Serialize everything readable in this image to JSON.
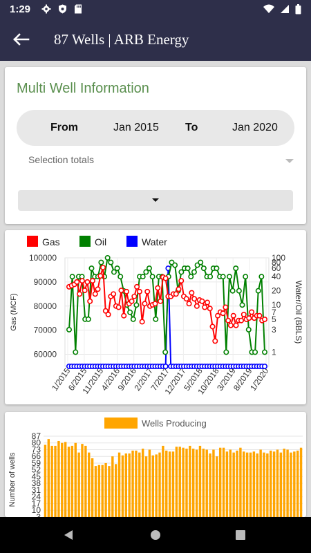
{
  "status_bar": {
    "time": "1:29"
  },
  "app_bar": {
    "title": "87 Wells | ARB Energy"
  },
  "multi_well": {
    "title": "Multi Well Information",
    "from_label": "From",
    "from_value": "Jan 2015",
    "to_label": "To",
    "to_value": "Jan 2020",
    "selection_placeholder": "Selection totals"
  },
  "colors": {
    "gas": "#ff0000",
    "oil": "#008000",
    "water": "#0000ff",
    "wells": "#ffa500",
    "accent": "#5a8f4e",
    "bar": "#2e2f4a"
  },
  "chart_data": [
    {
      "type": "line",
      "legend": [
        "Gas",
        "Oil",
        "Water"
      ],
      "legend_position": "top-left",
      "ylabel": "Gas (MCF)",
      "y2label": "Water/Oil (BBLS)",
      "ylim": [
        55000,
        100000
      ],
      "y_ticks": [
        60000,
        70000,
        80000,
        90000,
        100000
      ],
      "y2_scale": "log",
      "y2lim": [
        0.5,
        100
      ],
      "y2_ticks": [
        1,
        3,
        5,
        7,
        10,
        20,
        40,
        60,
        80,
        100
      ],
      "x_ticks": [
        "1/2015",
        "6/2015",
        "11/2015",
        "4/2016",
        "9/2016",
        "2/2017",
        "7/2017",
        "12/2017",
        "5/2018",
        "10/2018",
        "3/2019",
        "8/2019",
        "1/2020"
      ],
      "grid": true,
      "series": [
        {
          "name": "Gas",
          "axis": "left",
          "values": [
            88000,
            88500,
            89000,
            90000,
            85000,
            90500,
            86500,
            90000,
            82000,
            90500,
            85000,
            87000,
            92500,
            96000,
            78000,
            76500,
            84000,
            85000,
            80000,
            79500,
            86500,
            76000,
            86000,
            81000,
            82000,
            84000,
            88000,
            86000,
            73500,
            81000,
            86000,
            80000,
            80500,
            81000,
            87500,
            82000,
            92000,
            91500,
            84000,
            84000,
            85000,
            85000,
            87000,
            90500,
            84000,
            83000,
            81000,
            85500,
            83000,
            80000,
            82500,
            82000,
            79500,
            81500,
            79000,
            71500,
            65500,
            76000,
            77500,
            77000,
            79500,
            74000,
            72000,
            76000,
            72000,
            74000,
            74000,
            76500,
            74500,
            75000,
            77500,
            75000,
            76000,
            76000,
            74000,
            74500
          ]
        },
        {
          "name": "Oil",
          "axis": "right",
          "values": [
            3,
            40,
            1,
            40,
            40,
            5,
            5,
            60,
            40,
            40,
            80,
            40,
            100,
            80,
            50,
            60,
            40,
            20,
            10,
            7,
            5,
            10,
            40,
            40,
            50,
            60,
            40,
            5,
            40,
            40,
            1,
            40,
            80,
            70,
            20,
            50,
            60,
            60,
            40,
            50,
            70,
            80,
            60,
            40,
            40,
            60,
            60,
            40,
            40,
            1,
            40,
            20,
            60,
            20,
            10,
            40,
            3,
            1,
            1,
            20,
            40,
            1
          ]
        },
        {
          "name": "Water",
          "axis": "right",
          "values": [
            0.5,
            0.5,
            0.5,
            0.5,
            0.5,
            0.5,
            0.5,
            0.5,
            0.5,
            0.5,
            0.5,
            0.5,
            0.5,
            0.5,
            0.5,
            0.5,
            0.5,
            0.5,
            0.5,
            0.5,
            0.5,
            0.5,
            0.5,
            0.5,
            0.5,
            0.5,
            0.5,
            0.5,
            0.5,
            0.5,
            0.5,
            0.5,
            0.5,
            0.5,
            0.5,
            0.5,
            0.5,
            0.5,
            60,
            0.5,
            0.5,
            0.5,
            0.5,
            0.5,
            0.5,
            0.5,
            0.5,
            0.5,
            0.5,
            0.5,
            0.5,
            0.5,
            0.5,
            0.5,
            0.5,
            0.5,
            0.5,
            0.5,
            0.5,
            0.5,
            0.5,
            0.5,
            0.5,
            0.5,
            0.5,
            0.5,
            0.5,
            0.5,
            0.5,
            0.5,
            0.5,
            0.5,
            0.5,
            0.5,
            0.5,
            0.5
          ]
        }
      ]
    },
    {
      "type": "bar",
      "legend": [
        "Wells Producing"
      ],
      "legend_position": "top-center",
      "ylabel": "Number of wells",
      "y_ticks": [
        3,
        10,
        17,
        24,
        31,
        38,
        45,
        52,
        59,
        66,
        73,
        80,
        87
      ],
      "ylim": [
        0,
        87
      ],
      "series": [
        {
          "name": "Wells Producing",
          "values": [
            78,
            84,
            77,
            77,
            82,
            80,
            81,
            76,
            77,
            80,
            70,
            79,
            77,
            70,
            64,
            56,
            57,
            57,
            59,
            56,
            66,
            58,
            70,
            67,
            69,
            69,
            72,
            72,
            70,
            74,
            66,
            73,
            67,
            68,
            70,
            77,
            72,
            71,
            71,
            76,
            76,
            75,
            74,
            77,
            74,
            73,
            77,
            74,
            73,
            69,
            73,
            66,
            75,
            75,
            71,
            73,
            70,
            72,
            75,
            71,
            70,
            70,
            71,
            69,
            73,
            70,
            69,
            72,
            71,
            73,
            70,
            74,
            73,
            70,
            71,
            72,
            75
          ]
        }
      ]
    }
  ]
}
